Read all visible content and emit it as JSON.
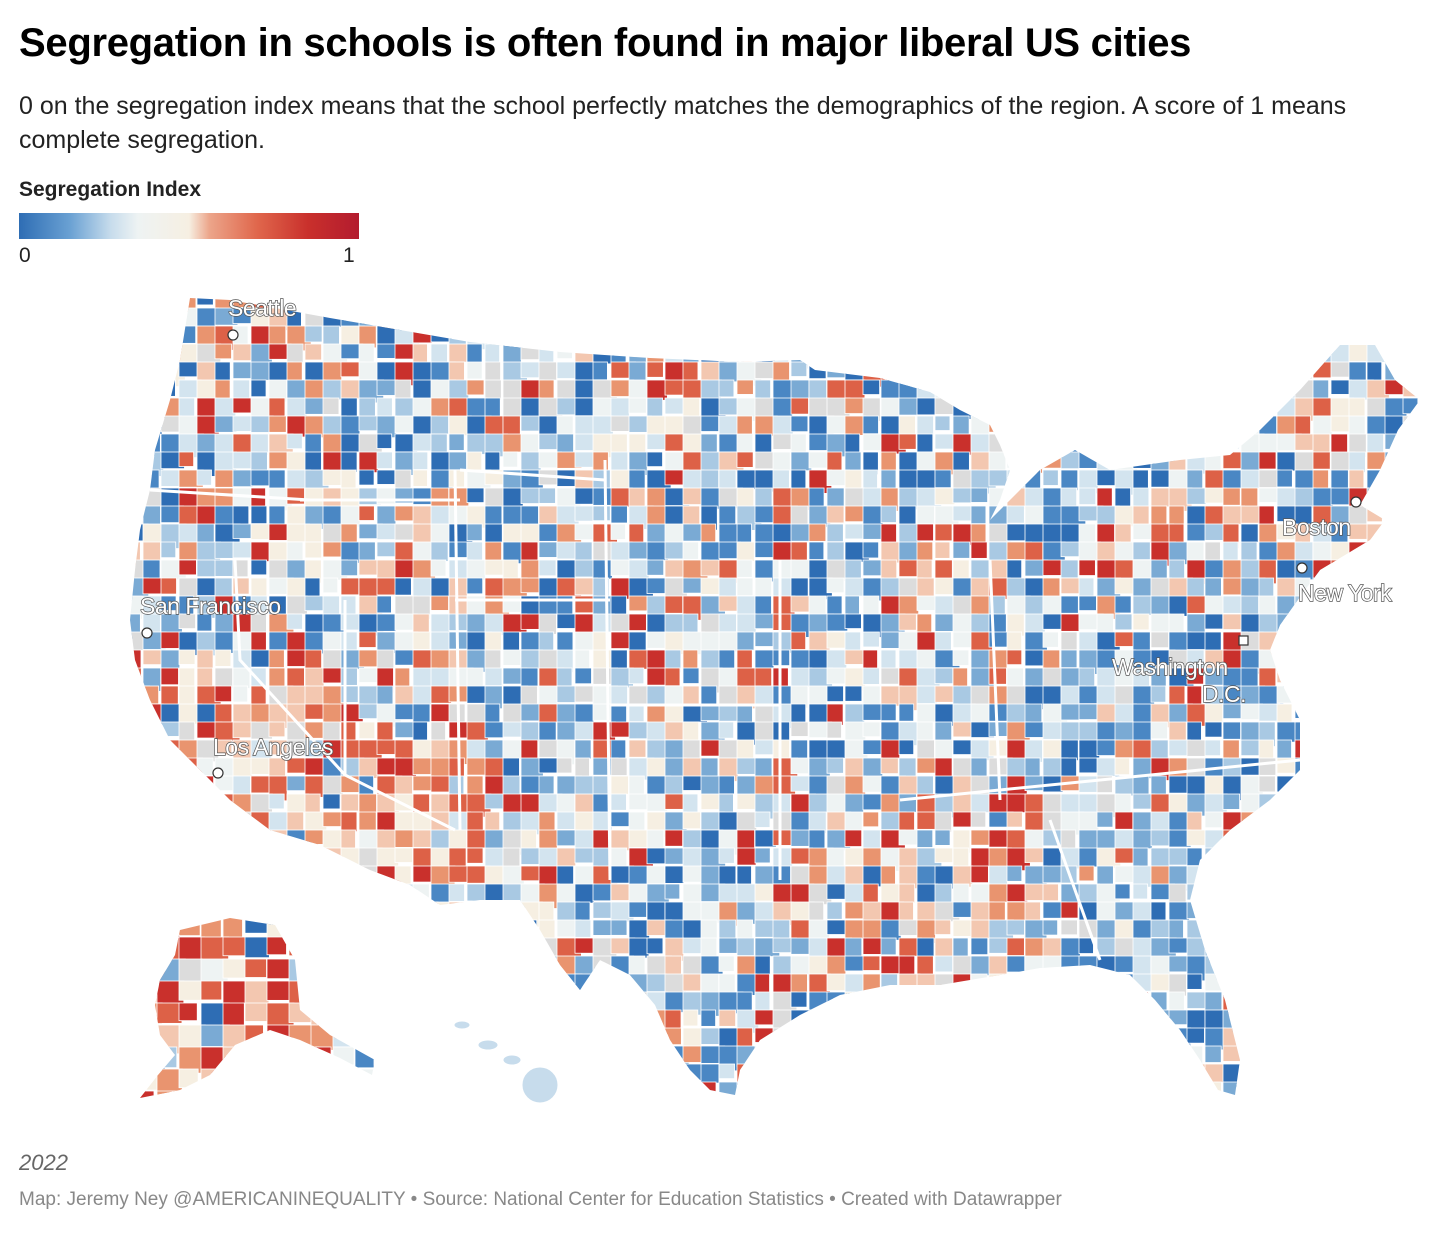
{
  "title": "Segregation in schools is often found in major liberal US cities",
  "subtitle": "0 on the segregation index means that the school perfectly matches the demographics of the region. A score of 1 means complete segregation.",
  "legend": {
    "title": "Segregation Index",
    "min_label": "0",
    "max_label": "1",
    "colors": [
      "#2e6db4",
      "#6aa1d3",
      "#c7dcec",
      "#f6efe2",
      "#e0674c",
      "#b31b2e"
    ]
  },
  "cities": {
    "seattle": "Seattle",
    "san_francisco": "San Francisco",
    "los_angeles": "Los Angeles",
    "boston": "Boston",
    "new_york": "New York",
    "washington_1": "Washington",
    "washington_2": "D.C."
  },
  "year": "2022",
  "byline": "Map: Jeremy Ney @AMERICANINEQUALITY • Source: National Center for Education Statistics • Created with Datawrapper"
}
